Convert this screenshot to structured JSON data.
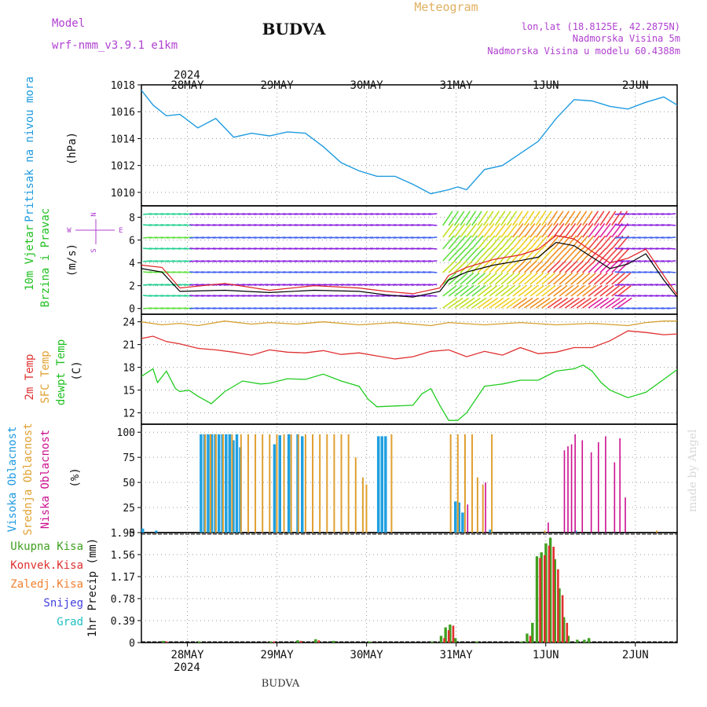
{
  "header": {
    "model_label": "Model",
    "model_name": "wrf-nmm_v3.9.1  e1km",
    "station": "BUDVA",
    "product": "Meteogram",
    "coords": "lon,lat (18.8125E, 42.2875N)",
    "elevation": "Nadmorska Visina 5m",
    "model_elevation": "Nadmorska Visina u modelu 60.4388m",
    "year": "2024",
    "footer_station": "BUDVA",
    "watermark": "made by Angel"
  },
  "colors": {
    "pressure": "#1e9be0",
    "wind_speed": "#000000",
    "gust": "#e02020",
    "t2m": "#e03030",
    "sfc": "#d4a030",
    "dewpt": "#20cc20",
    "high_cloud": "#20a0e0",
    "mid_cloud": "#e0a030",
    "low_cloud": "#cc1090",
    "total_precip": "#40a020",
    "conv_precip": "#e03030",
    "frozen": "#f08030",
    "snow": "#4040e0",
    "graupel": "#20c0c0",
    "label_blue": "#1e9be0",
    "label_green": "#20c020",
    "label_orange": "#e0a030",
    "label_red": "#e03030",
    "label_magenta": "#cc1090",
    "header_purple": "#b040d0",
    "header_gold": "#e0b060"
  },
  "time_axis": {
    "days": [
      "28MAY",
      "29MAY",
      "30MAY",
      "31MAY",
      "1JUN",
      "2JUN"
    ],
    "day_x": [
      0.0833,
      1.0833,
      2.0833,
      3.0833,
      4.0833,
      5.0833
    ],
    "x_min": -0.43,
    "x_max": 5.55
  },
  "panels": {
    "pressure": {
      "labels": [
        "Pritisak na nivou mora"
      ],
      "unit": "(hPa)",
      "ticks": [
        "1010",
        "1012",
        "1014",
        "1016",
        "1018"
      ],
      "ylim": [
        1009,
        1018
      ]
    },
    "wind": {
      "labels": [
        "10m Vjetar",
        "Brzina i Pravac"
      ],
      "unit": "(m/s)",
      "ticks": [
        "0",
        "2",
        "4",
        "6",
        "8"
      ],
      "ylim": [
        -0.5,
        9.0
      ],
      "compass": {
        "n": "N",
        "s": "S",
        "w": "W",
        "e": "E"
      }
    },
    "temp": {
      "labels": [
        "2m Temp",
        "SFC Temp",
        "dewpt Temp"
      ],
      "unit": "(C)",
      "ticks": [
        "12",
        "15",
        "18",
        "21",
        "24"
      ],
      "ylim": [
        10.5,
        25.0
      ]
    },
    "cloud": {
      "labels": [
        "Visoka Oblacnost",
        "Srednja Oblacnost",
        "Niska Oblacnost"
      ],
      "unit": "(%)",
      "ticks": [
        "0",
        "25",
        "50",
        "75",
        "100"
      ],
      "ylim": [
        0,
        108
      ]
    },
    "precip": {
      "legend": [
        "Ukupna Kisa",
        "Konvek.Kisa",
        "Zaledj.Kisa",
        "Snijeg",
        "Grad"
      ],
      "unit": "1hr Precip (mm)",
      "ticks": [
        "0",
        "0.39",
        "0.78",
        "1.17",
        "1.56",
        "1.95"
      ],
      "ylim": [
        0,
        1.95
      ]
    }
  },
  "chart_data": {
    "type": "line",
    "x_unit": "days since 28MAY 00UTC",
    "pressure_hpa": {
      "x": [
        -0.43,
        -0.3,
        -0.15,
        0.0,
        0.2,
        0.4,
        0.6,
        0.8,
        1.0,
        1.2,
        1.4,
        1.6,
        1.8,
        2.0,
        2.2,
        2.4,
        2.6,
        2.8,
        3.0,
        3.1,
        3.2,
        3.4,
        3.6,
        3.8,
        4.0,
        4.2,
        4.4,
        4.6,
        4.8,
        5.0,
        5.2,
        5.4,
        5.55
      ],
      "values": [
        1017.6,
        1016.5,
        1015.7,
        1015.8,
        1014.8,
        1015.5,
        1014.1,
        1014.4,
        1014.2,
        1014.5,
        1014.4,
        1013.4,
        1012.2,
        1011.6,
        1011.2,
        1011.2,
        1010.6,
        1009.9,
        1010.2,
        1010.4,
        1010.2,
        1011.7,
        1012.0,
        1012.9,
        1013.8,
        1015.5,
        1016.9,
        1016.8,
        1016.4,
        1016.2,
        1016.7,
        1017.1,
        1016.5
      ]
    },
    "wind_speed_ms": {
      "x": [
        -0.43,
        -0.2,
        0.0,
        0.5,
        1.0,
        1.5,
        2.0,
        2.3,
        2.6,
        2.9,
        3.0,
        3.2,
        3.5,
        3.8,
        4.0,
        4.2,
        4.4,
        4.6,
        4.8,
        5.0,
        5.2,
        5.4,
        5.55
      ],
      "values": [
        3.5,
        3.2,
        1.5,
        1.6,
        1.4,
        1.6,
        1.5,
        1.2,
        1.0,
        1.5,
        2.5,
        3.2,
        3.8,
        4.2,
        4.5,
        5.8,
        5.5,
        4.5,
        3.5,
        3.9,
        4.8,
        2.5,
        1.0
      ]
    },
    "wind_gust_ms": {
      "x": [
        -0.43,
        -0.2,
        0.0,
        0.5,
        1.0,
        1.5,
        2.0,
        2.3,
        2.6,
        2.9,
        3.0,
        3.2,
        3.5,
        3.8,
        4.0,
        4.2,
        4.4,
        4.6,
        4.8,
        5.0,
        5.2,
        5.4,
        5.55
      ],
      "values": [
        3.8,
        3.6,
        1.8,
        2.2,
        1.6,
        2.0,
        1.8,
        1.5,
        1.3,
        1.8,
        2.9,
        3.6,
        4.3,
        4.7,
        5.2,
        6.4,
        6.1,
        5.0,
        4.0,
        4.4,
        5.2,
        2.9,
        1.2
      ]
    },
    "t2m_c": {
      "x": [
        -0.43,
        -0.3,
        -0.15,
        0.0,
        0.2,
        0.4,
        0.6,
        0.8,
        1.0,
        1.2,
        1.4,
        1.6,
        1.8,
        2.0,
        2.2,
        2.4,
        2.6,
        2.8,
        3.0,
        3.2,
        3.4,
        3.6,
        3.8,
        4.0,
        4.2,
        4.4,
        4.6,
        4.8,
        5.0,
        5.2,
        5.4,
        5.55
      ],
      "values": [
        21.8,
        22.1,
        21.4,
        21.1,
        20.5,
        20.3,
        20.0,
        19.6,
        20.3,
        20.0,
        19.9,
        20.2,
        19.7,
        19.9,
        19.5,
        19.1,
        19.4,
        20.1,
        20.3,
        19.4,
        20.1,
        19.6,
        20.6,
        19.8,
        20.0,
        20.6,
        20.6,
        21.5,
        22.8,
        22.6,
        22.3,
        22.4
      ]
    },
    "sfc_c": {
      "x": [
        -0.43,
        -0.2,
        0.0,
        0.2,
        0.5,
        0.8,
        1.0,
        1.3,
        1.6,
        2.0,
        2.4,
        2.8,
        3.0,
        3.4,
        3.8,
        4.2,
        4.6,
        5.0,
        5.2,
        5.4,
        5.55
      ],
      "values": [
        24.0,
        23.6,
        23.8,
        23.5,
        24.1,
        23.7,
        23.9,
        23.7,
        24.0,
        23.6,
        23.9,
        23.5,
        23.9,
        23.6,
        23.9,
        23.6,
        23.8,
        23.5,
        23.9,
        24.1,
        24.1
      ]
    },
    "dewpt_c": {
      "x": [
        -0.43,
        -0.3,
        -0.25,
        -0.15,
        -0.05,
        0.0,
        0.1,
        0.2,
        0.35,
        0.5,
        0.7,
        0.9,
        1.0,
        1.2,
        1.4,
        1.6,
        1.8,
        2.0,
        2.1,
        2.2,
        2.4,
        2.6,
        2.7,
        2.8,
        2.9,
        3.0,
        3.1,
        3.2,
        3.4,
        3.6,
        3.8,
        4.0,
        4.2,
        4.4,
        4.5,
        4.6,
        4.7,
        4.8,
        5.0,
        5.2,
        5.4,
        5.55
      ],
      "values": [
        16.8,
        17.8,
        16.0,
        17.5,
        15.2,
        14.8,
        15.0,
        14.2,
        13.2,
        14.8,
        16.2,
        15.8,
        15.9,
        16.5,
        16.4,
        17.1,
        16.2,
        15.5,
        13.8,
        12.8,
        12.9,
        13.0,
        14.5,
        15.2,
        13.0,
        11.0,
        11.0,
        12.0,
        15.5,
        15.8,
        16.3,
        16.3,
        17.5,
        17.8,
        18.3,
        17.5,
        16.0,
        15.0,
        14.0,
        14.7,
        16.4,
        17.7
      ]
    },
    "cloud_pct": {
      "high": [
        [
          -0.43,
          4
        ],
        [
          -0.28,
          2
        ],
        [
          0.22,
          98
        ],
        [
          0.26,
          98
        ],
        [
          0.3,
          98
        ],
        [
          0.34,
          98
        ],
        [
          0.38,
          98
        ],
        [
          0.42,
          98
        ],
        [
          0.46,
          98
        ],
        [
          0.5,
          98
        ],
        [
          0.54,
          98
        ],
        [
          0.58,
          92
        ],
        [
          0.62,
          98
        ],
        [
          0.66,
          85
        ],
        [
          1.04,
          88
        ],
        [
          1.1,
          97
        ],
        [
          1.2,
          98
        ],
        [
          1.3,
          98
        ],
        [
          1.35,
          96
        ],
        [
          2.2,
          96
        ],
        [
          2.24,
          96
        ],
        [
          2.28,
          96
        ],
        [
          3.06,
          31
        ],
        [
          3.1,
          30
        ],
        [
          3.14,
          20
        ],
        [
          3.45,
          3
        ],
        [
          4.4,
          2
        ]
      ],
      "mid": [
        [
          0.26,
          98
        ],
        [
          0.32,
          98
        ],
        [
          0.38,
          98
        ],
        [
          0.46,
          98
        ],
        [
          0.56,
          98
        ],
        [
          0.66,
          98
        ],
        [
          0.74,
          98
        ],
        [
          0.82,
          98
        ],
        [
          0.9,
          98
        ],
        [
          0.98,
          98
        ],
        [
          1.06,
          98
        ],
        [
          1.14,
          98
        ],
        [
          1.22,
          98
        ],
        [
          1.3,
          98
        ],
        [
          1.38,
          98
        ],
        [
          1.46,
          98
        ],
        [
          1.54,
          98
        ],
        [
          1.62,
          98
        ],
        [
          1.7,
          98
        ],
        [
          1.78,
          98
        ],
        [
          1.86,
          98
        ],
        [
          1.94,
          75
        ],
        [
          2.02,
          55
        ],
        [
          2.06,
          48
        ],
        [
          2.34,
          98
        ],
        [
          3.0,
          98
        ],
        [
          3.08,
          98
        ],
        [
          3.16,
          98
        ],
        [
          3.24,
          98
        ],
        [
          3.3,
          55
        ],
        [
          3.36,
          48
        ],
        [
          3.46,
          98
        ],
        [
          4.05,
          2
        ],
        [
          5.3,
          2
        ]
      ],
      "low": [
        [
          3.2,
          28
        ],
        [
          3.4,
          50
        ],
        [
          4.1,
          10
        ],
        [
          4.28,
          82
        ],
        [
          4.32,
          86
        ],
        [
          4.36,
          88
        ],
        [
          4.4,
          98
        ],
        [
          4.48,
          92
        ],
        [
          4.58,
          80
        ],
        [
          4.66,
          90
        ],
        [
          4.74,
          96
        ],
        [
          4.84,
          70
        ],
        [
          4.9,
          94
        ],
        [
          4.96,
          35
        ]
      ]
    },
    "precip_mm": {
      "total": [
        [
          -0.2,
          0.03
        ],
        [
          0.2,
          0.02
        ],
        [
          1.0,
          0.02
        ],
        [
          1.3,
          0.04
        ],
        [
          1.5,
          0.06
        ],
        [
          1.7,
          0.03
        ],
        [
          2.1,
          0.02
        ],
        [
          2.8,
          0.02
        ],
        [
          2.9,
          0.12
        ],
        [
          2.95,
          0.27
        ],
        [
          3.0,
          0.32
        ],
        [
          3.06,
          0.08
        ],
        [
          3.3,
          0.02
        ],
        [
          3.8,
          0.02
        ],
        [
          3.86,
          0.16
        ],
        [
          3.92,
          0.35
        ],
        [
          3.97,
          1.53
        ],
        [
          4.02,
          1.6
        ],
        [
          4.07,
          1.76
        ],
        [
          4.12,
          1.86
        ],
        [
          4.17,
          1.48
        ],
        [
          4.22,
          0.96
        ],
        [
          4.27,
          0.45
        ],
        [
          4.32,
          0.12
        ],
        [
          4.42,
          0.05
        ],
        [
          4.5,
          0.05
        ],
        [
          4.55,
          0.08
        ]
      ],
      "convective": [
        [
          -0.18,
          0.02
        ],
        [
          1.02,
          0.02
        ],
        [
          1.32,
          0.03
        ],
        [
          1.52,
          0.04
        ],
        [
          2.92,
          0.08
        ],
        [
          2.97,
          0.22
        ],
        [
          3.02,
          0.3
        ],
        [
          3.88,
          0.12
        ],
        [
          3.99,
          1.5
        ],
        [
          4.04,
          1.55
        ],
        [
          4.09,
          1.72
        ],
        [
          4.14,
          1.7
        ],
        [
          4.19,
          1.3
        ],
        [
          4.24,
          0.84
        ],
        [
          4.29,
          0.35
        ]
      ]
    }
  }
}
